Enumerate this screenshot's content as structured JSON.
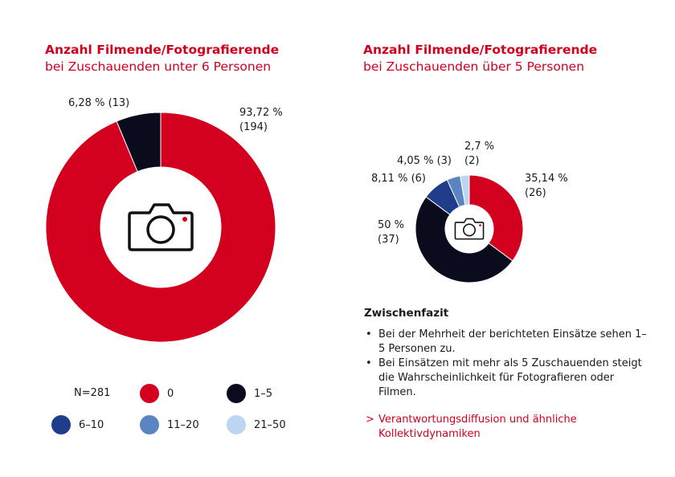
{
  "chart_data": [
    {
      "type": "pie",
      "donut": true,
      "title": "Anzahl Filmende/Fotografierende",
      "subtitle": "bei Zuschauenden unter 6 Personen",
      "slices": [
        {
          "category": "0",
          "percent": 93.72,
          "count": 194,
          "color": "#d2001e",
          "label_pct": "93,72 %",
          "label_count": "(194)"
        },
        {
          "category": "1–5",
          "percent": 6.28,
          "count": 13,
          "color": "#0b0b1e",
          "label_pct": "6,28 % (13)",
          "label_count": ""
        }
      ]
    },
    {
      "type": "pie",
      "donut": true,
      "title": "Anzahl Filmende/Fotografierende",
      "subtitle": "bei Zuschauenden über 5 Personen",
      "slices": [
        {
          "category": "0",
          "percent": 35.14,
          "count": 26,
          "color": "#d2001e",
          "label_pct": "35,14 %",
          "label_count": "(26)"
        },
        {
          "category": "1–5",
          "percent": 50,
          "count": 37,
          "color": "#0b0b1e",
          "label_pct": "50 %",
          "label_count": "(37)"
        },
        {
          "category": "6–10",
          "percent": 8.11,
          "count": 6,
          "color": "#1f3d8a",
          "label_pct": "8,11 % (6)",
          "label_count": ""
        },
        {
          "category": "11–20",
          "percent": 4.05,
          "count": 3,
          "color": "#5b85c2",
          "label_pct": "4,05 % (3)",
          "label_count": ""
        },
        {
          "category": "21–50",
          "percent": 2.7,
          "count": 2,
          "color": "#bcd6f2",
          "label_pct": "2,7 %",
          "label_count": "(2)"
        }
      ]
    }
  ],
  "legend": {
    "n_label": "N=281",
    "items": [
      {
        "label": "0",
        "color": "#d2001e"
      },
      {
        "label": "1–5",
        "color": "#0b0b1e"
      },
      {
        "label": "6–10",
        "color": "#1f3d8a"
      },
      {
        "label": "11–20",
        "color": "#5b85c2"
      },
      {
        "label": "21–50",
        "color": "#bcd6f2"
      }
    ]
  },
  "summary": {
    "heading": "Zwischenfazit",
    "bullets": [
      "Bei der Mehrheit der berichteten Einsätze sehen 1–5 Personen zu.",
      "Bei Einsätzen mit mehr als 5 Zuschauenden steigt die Wahrscheinlichkeit für Fotografieren oder Filmen."
    ],
    "link_arrow": ">",
    "link_text": "Verantwortungsdiffusion und ähnliche Kollektivdynamiken"
  },
  "icons": {
    "center": "camera-icon"
  }
}
